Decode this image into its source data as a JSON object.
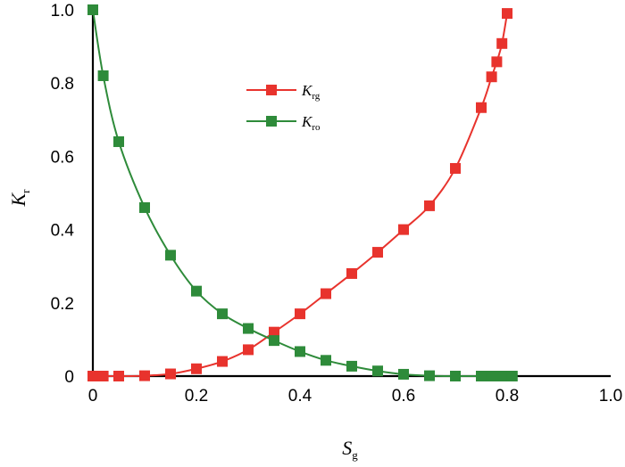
{
  "chart_data": {
    "type": "line",
    "xlabel": {
      "main": "S",
      "sub": "g"
    },
    "ylabel": {
      "main": "K",
      "sub": "r"
    },
    "xlim": [
      0,
      1.0
    ],
    "ylim": [
      0,
      1.0
    ],
    "xticks": [
      "0",
      "0.2",
      "0.4",
      "0.6",
      "0.8",
      "1.0"
    ],
    "yticks": [
      "0",
      "0.2",
      "0.4",
      "0.6",
      "0.8",
      "1.0"
    ],
    "grid": false,
    "legend_position": "upper-center",
    "series": [
      {
        "name": {
          "main": "K",
          "sub": "rg"
        },
        "color": "#e8332d",
        "marker": "square",
        "x": [
          0,
          0.01,
          0.02,
          0.05,
          0.1,
          0.15,
          0.2,
          0.25,
          0.3,
          0.35,
          0.4,
          0.45,
          0.5,
          0.55,
          0.6,
          0.65,
          0.7,
          0.75,
          0.77,
          0.78,
          0.79,
          0.8
        ],
        "y": [
          0,
          0,
          0,
          0,
          0.001,
          0.006,
          0.02,
          0.04,
          0.072,
          0.12,
          0.17,
          0.225,
          0.28,
          0.338,
          0.4,
          0.465,
          0.567,
          0.733,
          0.817,
          0.858,
          0.908,
          0.99
        ]
      },
      {
        "name": {
          "main": "K",
          "sub": "ro"
        },
        "color": "#2e8b3a",
        "marker": "square",
        "x": [
          0,
          0.02,
          0.05,
          0.1,
          0.15,
          0.2,
          0.25,
          0.3,
          0.35,
          0.4,
          0.45,
          0.5,
          0.55,
          0.6,
          0.65,
          0.7,
          0.75,
          0.77,
          0.78,
          0.79,
          0.8,
          0.81
        ],
        "y": [
          1.0,
          0.82,
          0.64,
          0.46,
          0.33,
          0.232,
          0.17,
          0.13,
          0.097,
          0.067,
          0.043,
          0.027,
          0.014,
          0.005,
          0.001,
          0,
          0,
          0,
          0,
          0,
          0,
          0
        ]
      }
    ]
  }
}
